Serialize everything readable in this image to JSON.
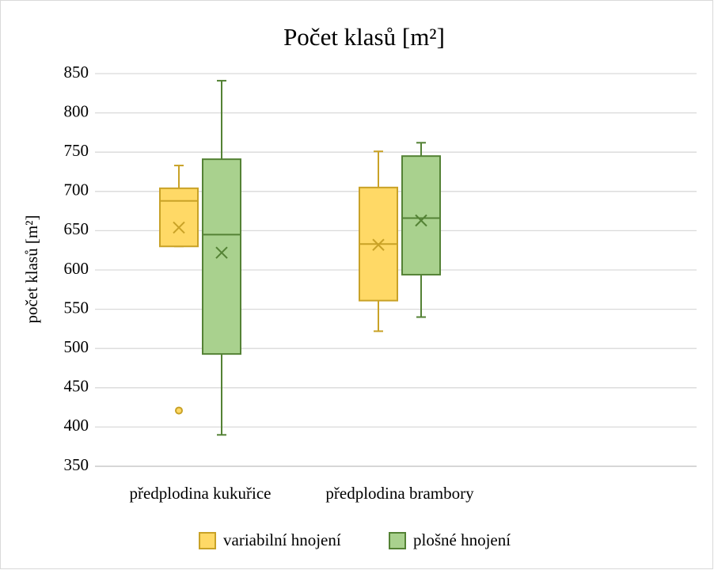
{
  "chart_data": {
    "type": "box",
    "title": "Počet klasů [m²]",
    "y_label": "počet klasů [m²]",
    "categories": [
      "předplodina kukuřice",
      "předplodina brambory",
      null
    ],
    "ylim": [
      350,
      850
    ],
    "yticks": [
      350,
      400,
      450,
      500,
      550,
      600,
      650,
      700,
      750,
      800,
      850
    ],
    "grid": true,
    "legend": "bottom",
    "series": [
      {
        "name": "variabilní hnojení",
        "color": "#ffd966",
        "edge": "#c9a227",
        "min": [
          630,
          522,
          null
        ],
        "q1": [
          630,
          561,
          null
        ],
        "median": [
          688,
          633,
          null
        ],
        "q3": [
          704,
          705,
          null
        ],
        "max": [
          733,
          751,
          null
        ],
        "mean": [
          654,
          632,
          null
        ],
        "outliers": [
          [
            421
          ],
          [],
          []
        ]
      },
      {
        "name": "plošné hnojení",
        "color": "#a9d18e",
        "edge": "#548235",
        "min": [
          390,
          540,
          null
        ],
        "q1": [
          493,
          594,
          null
        ],
        "median": [
          645,
          666,
          null
        ],
        "q3": [
          741,
          745,
          null
        ],
        "max": [
          841,
          762,
          null
        ],
        "mean": [
          622,
          663,
          null
        ],
        "outliers": [
          [],
          [],
          []
        ]
      }
    ]
  }
}
